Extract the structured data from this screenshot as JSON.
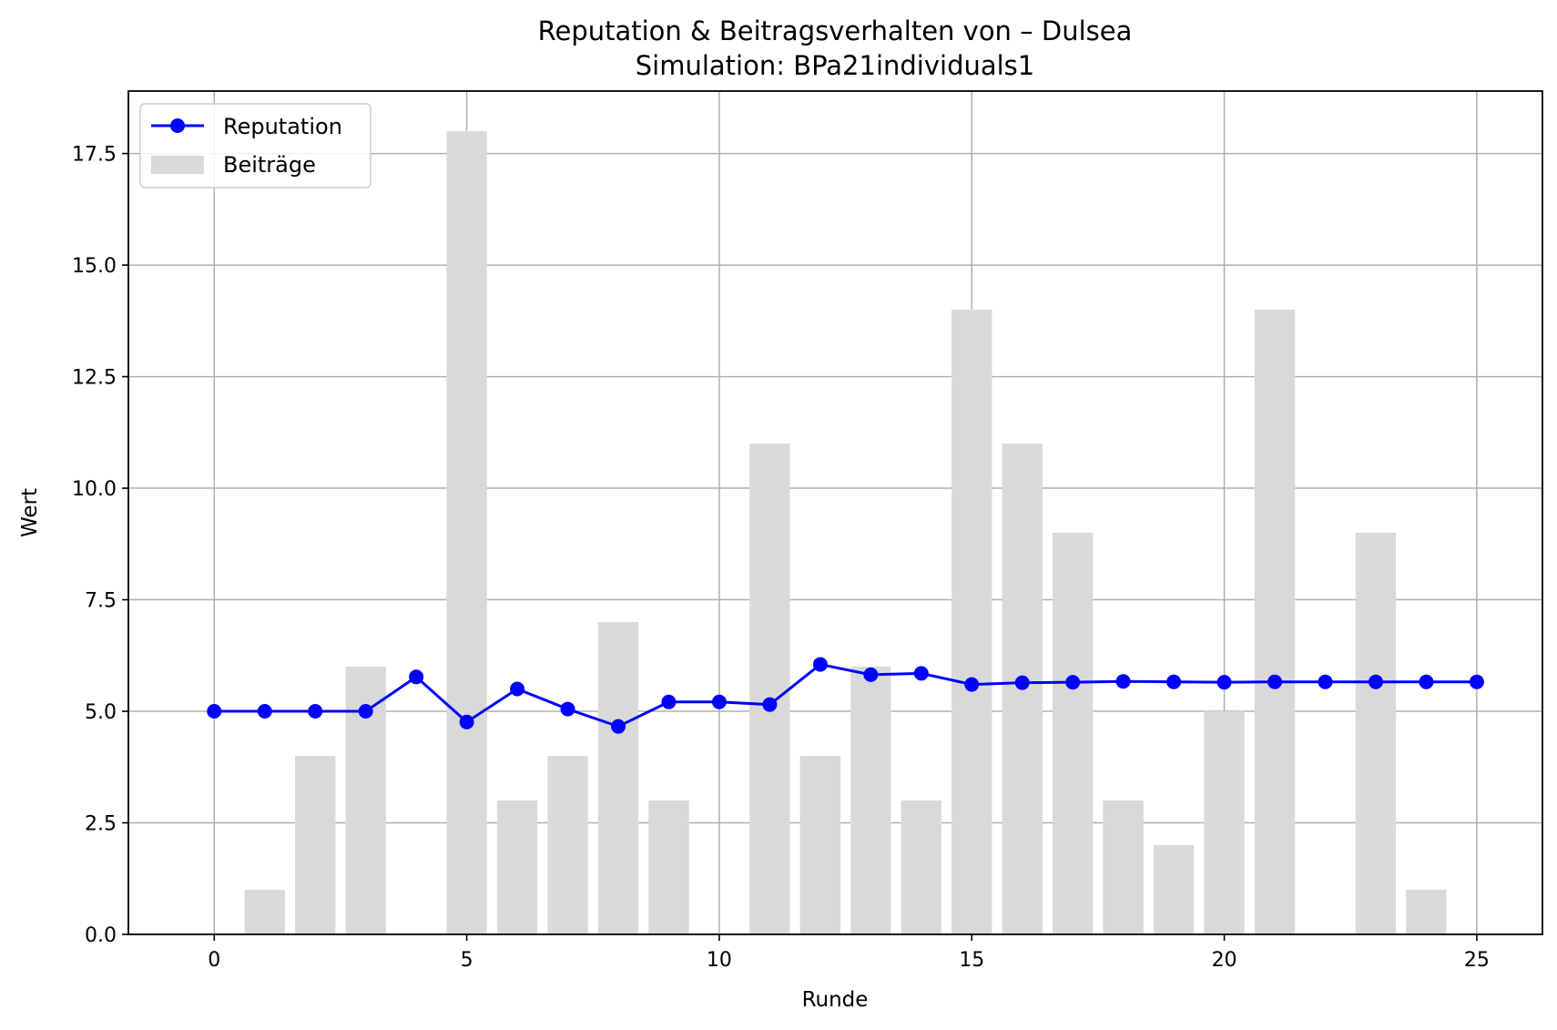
{
  "chart_data": {
    "type": "bar+line",
    "title": "Reputation & Beitragsverhalten von – Dulsea",
    "subtitle": "Simulation: BPa21individuals1",
    "xlabel": "Runde",
    "ylabel": "Wert",
    "xlim": [
      -1.7,
      26.3
    ],
    "ylim": [
      0,
      18.9
    ],
    "xticks": [
      0,
      5,
      10,
      15,
      20,
      25
    ],
    "yticks": [
      0.0,
      2.5,
      5.0,
      7.5,
      10.0,
      12.5,
      15.0,
      17.5
    ],
    "xtick_labels": [
      "0",
      "5",
      "10",
      "15",
      "20",
      "25"
    ],
    "ytick_labels": [
      "0.0",
      "2.5",
      "5.0",
      "7.5",
      "10.0",
      "12.5",
      "15.0",
      "17.5"
    ],
    "grid": true,
    "legend": {
      "placement": "top-left",
      "entries": [
        {
          "name": "Reputation",
          "color": "#0000ff",
          "kind": "line-marker"
        },
        {
          "name": "Beiträge",
          "color": "#d9d9d9",
          "kind": "bar"
        }
      ]
    },
    "series": [
      {
        "name": "Beiträge",
        "kind": "bar",
        "color": "#d9d9d9",
        "x": [
          0,
          1,
          2,
          3,
          4,
          5,
          6,
          7,
          8,
          9,
          10,
          11,
          12,
          13,
          14,
          15,
          16,
          17,
          18,
          19,
          20,
          21,
          22,
          23,
          24,
          25
        ],
        "values": [
          0,
          1,
          4,
          6,
          0,
          18,
          3,
          4,
          7,
          3,
          0,
          11,
          4,
          6,
          3,
          14,
          11,
          9,
          3,
          2,
          5,
          14,
          0,
          9,
          1,
          0
        ]
      },
      {
        "name": "Reputation",
        "kind": "line",
        "color": "#0000ff",
        "x": [
          0,
          1,
          2,
          3,
          4,
          5,
          6,
          7,
          8,
          9,
          10,
          11,
          12,
          13,
          14,
          15,
          16,
          17,
          18,
          19,
          20,
          21,
          22,
          23,
          24,
          25
        ],
        "values": [
          5.0,
          5.0,
          5.0,
          5.0,
          5.77,
          4.76,
          5.5,
          5.05,
          4.66,
          5.21,
          5.21,
          5.15,
          6.05,
          5.82,
          5.85,
          5.6,
          5.64,
          5.65,
          5.67,
          5.66,
          5.65,
          5.66,
          5.66,
          5.66,
          5.66,
          5.66
        ]
      }
    ]
  }
}
